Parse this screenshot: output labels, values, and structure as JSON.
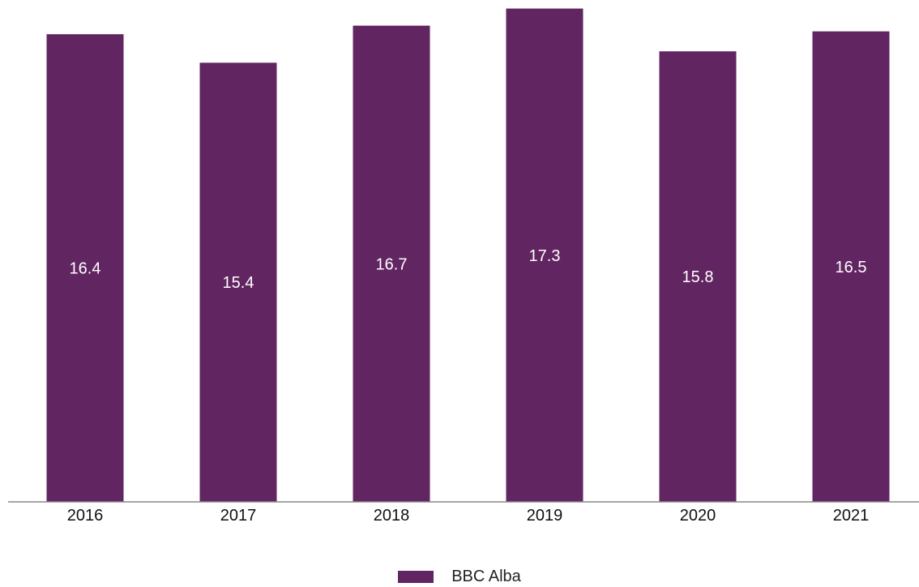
{
  "chart_data": {
    "type": "bar",
    "categories": [
      "2016",
      "2017",
      "2018",
      "2019",
      "2020",
      "2021"
    ],
    "series": [
      {
        "name": "BBC Alba",
        "values": [
          16.4,
          15.4,
          16.7,
          17.3,
          15.8,
          16.5
        ]
      }
    ],
    "title": "",
    "xlabel": "",
    "ylabel": "",
    "ylim": [
      0,
      17.6
    ],
    "grid": false,
    "legend_position": "bottom-center",
    "data_labels": "inside-center",
    "colors": {
      "bar": "#612562",
      "bar_label": "#ffffff",
      "axis": "#888888",
      "tick_label": "#111111"
    }
  },
  "legend": {
    "label": "BBC Alba",
    "swatch_color": "#612562"
  }
}
